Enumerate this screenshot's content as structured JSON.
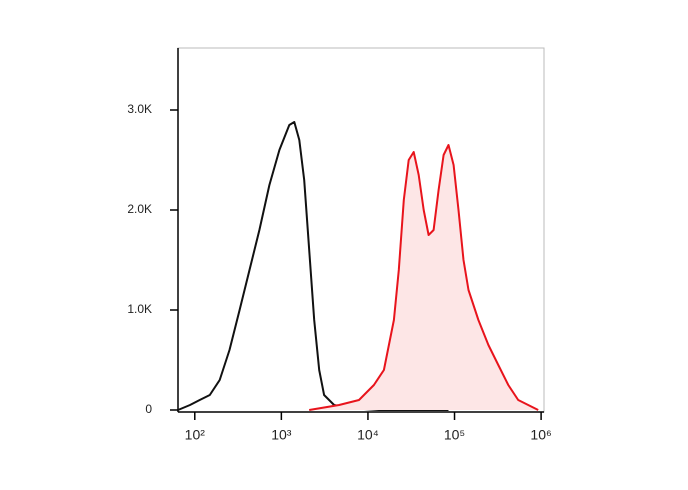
{
  "chart_data": {
    "type": "line",
    "x_scale": "log",
    "xlim": [
      64,
      1080000
    ],
    "ylim": [
      -20,
      3620
    ],
    "xticks": [
      {
        "value": 100,
        "label": "10²"
      },
      {
        "value": 1000,
        "label": "10³"
      },
      {
        "value": 10000,
        "label": "10⁴"
      },
      {
        "value": 100000,
        "label": "10⁵"
      },
      {
        "value": 1000000,
        "label": "10⁶"
      }
    ],
    "yticks": [
      0,
      {
        "value": 1000,
        "label": "1.0K"
      },
      {
        "value": 2000,
        "label": "2.0K"
      },
      {
        "value": 3000,
        "label": "3.0K"
      }
    ],
    "series": [
      {
        "color": "#111111",
        "x": [
          64,
          88,
          114,
          149,
          194,
          252,
          329,
          429,
          558,
          728,
          948,
          1236,
          1410,
          1610,
          1836,
          2099,
          2393,
          2735,
          3119,
          4064,
          6050,
          13370,
          85300
        ],
        "values": [
          0,
          50,
          100,
          150,
          300,
          600,
          1000,
          1400,
          1800,
          2250,
          2600,
          2850,
          2880,
          2700,
          2300,
          1600,
          900,
          400,
          150,
          50,
          20,
          0,
          0
        ]
      },
      {
        "color": "#e8141c",
        "fill": "#fde6e6",
        "x": [
          2099,
          4642,
          7886,
          11720,
          15280,
          19920,
          22720,
          25930,
          29580,
          33790,
          38550,
          44020,
          50230,
          57350,
          65460,
          74780,
          85300,
          97500,
          111200,
          126900,
          144900,
          188800,
          246000,
          320600,
          417800,
          544500,
          709600,
          924800
        ],
        "values": [
          0,
          50,
          100,
          250,
          400,
          900,
          1400,
          2100,
          2500,
          2580,
          2350,
          2000,
          1750,
          1800,
          2200,
          2550,
          2650,
          2450,
          2000,
          1500,
          1200,
          900,
          650,
          450,
          250,
          100,
          50,
          0
        ]
      }
    ]
  }
}
